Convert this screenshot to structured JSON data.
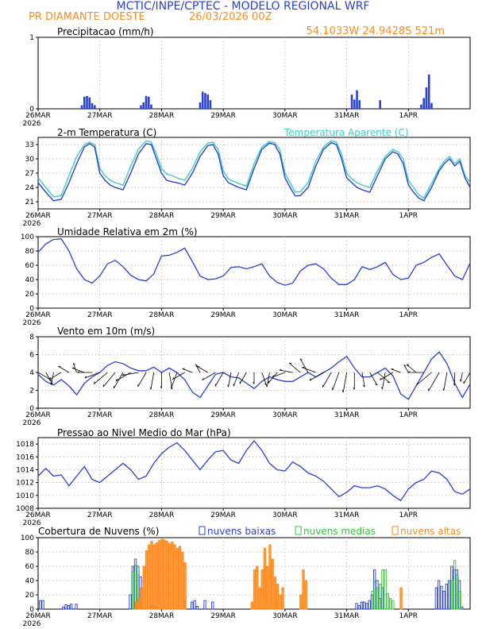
{
  "header": {
    "title": "MCTIC/INPE/CPTEC - MODELO REGIONAL WRF",
    "location": "PR DIAMANTE DOESTE",
    "run": "26/03/2026 00Z",
    "coords": "54.1033W  24.9428S  521m"
  },
  "colors": {
    "title": "#2a3fd6",
    "header_orange": "#ff8a1c",
    "blue": "#2a3fd6",
    "cyan": "#3ccfc0",
    "green": "#2fc72f",
    "orange": "#ff8a1c",
    "black": "#000000"
  },
  "x_axis": {
    "labels": [
      "26MAR",
      "27MAR",
      "28MAR",
      "29MAR",
      "30MAR",
      "31MAR",
      "1APR"
    ],
    "year": "2026",
    "hours_total": 168
  },
  "chart_data": [
    {
      "id": "precip",
      "type": "bar",
      "title": "Precipitacao (mm/h)",
      "ylim": [
        0,
        1
      ],
      "yticks": [
        "0",
        "1"
      ],
      "x_hours": [
        17,
        18,
        19,
        20,
        21,
        22,
        40,
        41,
        42,
        43,
        44,
        63,
        64,
        65,
        66,
        67,
        122,
        123,
        124,
        125,
        133,
        149,
        150,
        151,
        152,
        153
      ],
      "values": [
        0.05,
        0.17,
        0.18,
        0.16,
        0.08,
        0.05,
        0.05,
        0.09,
        0.18,
        0.17,
        0.06,
        0.09,
        0.24,
        0.22,
        0.2,
        0.12,
        0.2,
        0.13,
        0.26,
        0.12,
        0.12,
        0.06,
        0.15,
        0.3,
        0.48,
        0.08
      ]
    },
    {
      "id": "temperature",
      "type": "line",
      "title": "2-m Temperatura (C)",
      "legend": "Temperatura Aparente (C)",
      "ylim": [
        19.5,
        34.5
      ],
      "yticks": [
        "21",
        "24",
        "27",
        "30",
        "33"
      ],
      "series": [
        {
          "name": "2-m Temperatura (C)",
          "color": "blue",
          "hours": [
            0,
            3,
            6,
            9,
            12,
            15,
            18,
            20,
            22,
            24,
            26,
            28,
            30,
            33,
            36,
            39,
            42,
            44,
            46,
            48,
            50,
            52,
            54,
            57,
            60,
            63,
            66,
            68,
            70,
            72,
            74,
            76,
            78,
            81,
            84,
            87,
            90,
            92,
            94,
            96,
            98,
            100,
            102,
            105,
            108,
            111,
            114,
            116,
            118,
            120,
            122,
            124,
            126,
            129,
            132,
            135,
            138,
            140,
            142,
            144,
            146,
            148,
            150,
            153,
            156,
            158,
            160,
            162,
            164,
            166,
            168
          ],
          "values": [
            25,
            23,
            21.2,
            21.5,
            25,
            29,
            32.5,
            33.2,
            32.5,
            27,
            25.5,
            24.5,
            24,
            23.5,
            27,
            31,
            33.2,
            33,
            30,
            27,
            25.5,
            25.2,
            25,
            24.5,
            27,
            30.5,
            32.8,
            33,
            31,
            26.5,
            25,
            24.5,
            24,
            23.5,
            28,
            32,
            33.3,
            33,
            31,
            26,
            24,
            22.2,
            22.3,
            24,
            28.5,
            32,
            33.4,
            33,
            30,
            26,
            25,
            24,
            23.5,
            23,
            26.5,
            30,
            31.5,
            31,
            29,
            24.5,
            23,
            21.8,
            21.2,
            24,
            27.5,
            29,
            30,
            28.5,
            29.5,
            26,
            24
          ]
        },
        {
          "name": "Temperatura Aparente (C)",
          "color": "cyan",
          "hours": [
            0,
            3,
            6,
            9,
            12,
            15,
            18,
            20,
            22,
            24,
            26,
            28,
            30,
            33,
            36,
            39,
            42,
            44,
            46,
            48,
            50,
            52,
            54,
            57,
            60,
            63,
            66,
            68,
            70,
            72,
            74,
            76,
            78,
            81,
            84,
            87,
            90,
            92,
            94,
            96,
            98,
            100,
            102,
            105,
            108,
            111,
            114,
            116,
            118,
            120,
            122,
            124,
            126,
            129,
            132,
            135,
            138,
            140,
            142,
            144,
            146,
            148,
            150,
            153,
            156,
            158,
            160,
            162,
            164,
            166,
            168
          ],
          "values": [
            26,
            24,
            22,
            22.3,
            26.5,
            30.5,
            33,
            33.5,
            33,
            28,
            26.5,
            25.5,
            25,
            24.5,
            28.5,
            32,
            33.8,
            33.5,
            31,
            28,
            26.8,
            26.5,
            26,
            25.5,
            28,
            31.5,
            33.3,
            33.5,
            32,
            27.5,
            25.8,
            25.3,
            24.8,
            24.3,
            29,
            32.5,
            33.6,
            33.4,
            32,
            27,
            25,
            23,
            23.1,
            25,
            29.5,
            32.5,
            33.8,
            33.5,
            31,
            27,
            25.8,
            25,
            24.5,
            24,
            27.5,
            30.5,
            32,
            31.5,
            30,
            25.5,
            24,
            22.5,
            21.8,
            24.8,
            28,
            29.5,
            30.5,
            29,
            30,
            26.5,
            25
          ]
        }
      ]
    },
    {
      "id": "humidity",
      "type": "line",
      "title": "Umidade Relativa em 2m (%)",
      "ylim": [
        0,
        100
      ],
      "yticks": [
        "0",
        "20",
        "40",
        "60",
        "80",
        "100"
      ],
      "hours": [
        0,
        3,
        6,
        9,
        12,
        15,
        18,
        21,
        24,
        27,
        30,
        33,
        36,
        39,
        42,
        45,
        48,
        51,
        54,
        57,
        60,
        63,
        66,
        69,
        72,
        75,
        78,
        81,
        84,
        87,
        90,
        93,
        96,
        99,
        102,
        105,
        108,
        111,
        114,
        117,
        120,
        123,
        126,
        129,
        132,
        135,
        138,
        141,
        144,
        147,
        150,
        153,
        156,
        159,
        162,
        165,
        168
      ],
      "values": [
        78,
        90,
        96,
        97,
        80,
        55,
        40,
        35,
        45,
        62,
        67,
        58,
        46,
        40,
        38,
        48,
        73,
        74,
        78,
        84,
        65,
        45,
        40,
        41,
        45,
        57,
        58,
        55,
        58,
        62,
        45,
        36,
        32,
        35,
        52,
        60,
        62,
        55,
        42,
        33,
        33,
        40,
        58,
        54,
        58,
        64,
        47,
        40,
        42,
        60,
        64,
        71,
        76,
        60,
        45,
        40,
        63
      ]
    },
    {
      "id": "wind",
      "type": "line",
      "title": "Vento em 10m (m/s)",
      "ylim": [
        0,
        8
      ],
      "yticks": [
        "0",
        "2",
        "4",
        "6",
        "8"
      ],
      "hours": [
        0,
        3,
        6,
        9,
        12,
        15,
        18,
        21,
        24,
        27,
        30,
        33,
        36,
        39,
        42,
        45,
        48,
        51,
        54,
        57,
        60,
        63,
        66,
        69,
        72,
        75,
        78,
        81,
        84,
        87,
        90,
        93,
        96,
        99,
        102,
        105,
        108,
        111,
        114,
        117,
        120,
        123,
        126,
        129,
        132,
        135,
        138,
        141,
        144,
        147,
        150,
        153,
        156,
        159,
        162,
        165,
        168
      ],
      "values": [
        3.8,
        3,
        2.6,
        3.2,
        2.5,
        1.5,
        2.8,
        3.5,
        4,
        4.8,
        5.2,
        5,
        4.5,
        4.2,
        4.2,
        4.6,
        4,
        4.5,
        4,
        3.2,
        1.8,
        1.2,
        2.5,
        3.8,
        4,
        3.5,
        3.4,
        2.8,
        2.2,
        3,
        3.5,
        3.2,
        3,
        3,
        3.5,
        4,
        3.5,
        4,
        4.5,
        5.2,
        5.8,
        4.5,
        3.5,
        3.5,
        4,
        4.5,
        3.6,
        1.6,
        1,
        2.5,
        4,
        5.5,
        6.3,
        5,
        2.8,
        1.2,
        2.7
      ],
      "barb_dirs": [
        30,
        60,
        100,
        150,
        210,
        250,
        200,
        180,
        160,
        140,
        130,
        120,
        150,
        170,
        120,
        100,
        90,
        80,
        110,
        150,
        200,
        240,
        210,
        150,
        120,
        100,
        110,
        120,
        90,
        70,
        100,
        130,
        160,
        190,
        220,
        240,
        200,
        150,
        120,
        110,
        100,
        90,
        80,
        60,
        40,
        100,
        150,
        200,
        240,
        220,
        180,
        140,
        120,
        100,
        90,
        100,
        120
      ]
    },
    {
      "id": "pressure",
      "type": "line",
      "title": "Pressao ao Nivel Medio do Mar (hPa)",
      "ylim": [
        1008,
        1019
      ],
      "yticks": [
        "1008",
        "1010",
        "1012",
        "1014",
        "1016",
        "1018"
      ],
      "hours": [
        0,
        3,
        6,
        9,
        12,
        15,
        18,
        21,
        24,
        27,
        30,
        33,
        36,
        39,
        42,
        45,
        48,
        51,
        54,
        57,
        60,
        63,
        66,
        69,
        72,
        75,
        78,
        81,
        84,
        87,
        90,
        93,
        96,
        99,
        102,
        105,
        108,
        111,
        114,
        117,
        120,
        123,
        126,
        129,
        132,
        135,
        138,
        141,
        144,
        147,
        150,
        153,
        156,
        159,
        162,
        165,
        168
      ],
      "values": [
        1013,
        1014.2,
        1013,
        1013.2,
        1011.5,
        1013,
        1014.5,
        1012.5,
        1012,
        1013,
        1014,
        1015,
        1014,
        1012.5,
        1013,
        1015,
        1016.5,
        1017.5,
        1018.2,
        1017,
        1015.5,
        1014,
        1015.5,
        1016.8,
        1017,
        1015.5,
        1015,
        1017,
        1018.5,
        1017,
        1015,
        1014,
        1013.8,
        1015.2,
        1014.5,
        1013.5,
        1013,
        1012.2,
        1011,
        1009.8,
        1010.5,
        1011.5,
        1011.2,
        1011.2,
        1011.5,
        1011,
        1010,
        1009.2,
        1011,
        1012,
        1012.5,
        1013.8,
        1013.5,
        1012.5,
        1010.6,
        1010.2,
        1011
      ]
    },
    {
      "id": "clouds",
      "type": "bar",
      "title": "Cobertura de Nuvens (%)",
      "ylim": [
        0,
        100
      ],
      "yticks": [
        "0",
        "20",
        "40",
        "60",
        "80",
        "100"
      ],
      "series": [
        {
          "name": "nuvens baixas",
          "color": "blue",
          "x_hours": [
            1,
            2,
            10,
            11,
            12,
            13,
            15,
            36,
            37,
            38,
            39,
            40,
            44,
            45,
            46,
            57,
            60,
            61,
            62,
            65,
            68,
            124,
            125,
            126,
            127,
            128,
            129,
            130,
            131,
            132,
            133,
            134,
            155,
            156,
            157,
            158,
            159,
            160,
            161,
            162,
            163,
            164,
            165
          ],
          "values": [
            12,
            12,
            3,
            6,
            5,
            7,
            7,
            20,
            60,
            70,
            60,
            45,
            5,
            5,
            3,
            12,
            10,
            12,
            4,
            12,
            10,
            8,
            5,
            10,
            10,
            8,
            12,
            20,
            55,
            40,
            15,
            30,
            30,
            40,
            32,
            25,
            35,
            40,
            60,
            55,
            55,
            40,
            3
          ]
        },
        {
          "name": "nuvens medias",
          "color": "green",
          "x_hours": [
            37,
            38,
            39,
            130,
            131,
            132,
            133,
            134,
            135,
            136,
            137,
            138,
            161,
            162,
            163,
            164
          ],
          "values": [
            52,
            62,
            48,
            25,
            38,
            30,
            35,
            55,
            55,
            22,
            15,
            12,
            40,
            68,
            48,
            25
          ]
        },
        {
          "name": "nuvens altas",
          "color": "orange",
          "x_hours": [
            38,
            39,
            40,
            41,
            42,
            43,
            44,
            45,
            46,
            47,
            48,
            49,
            50,
            51,
            52,
            53,
            54,
            55,
            56,
            57,
            83,
            84,
            85,
            86,
            87,
            88,
            89,
            90,
            91,
            92,
            93,
            94,
            95,
            102,
            103,
            104,
            141
          ],
          "values": [
            10,
            15,
            30,
            60,
            82,
            90,
            95,
            90,
            93,
            96,
            98,
            97,
            95,
            92,
            94,
            90,
            85,
            88,
            80,
            65,
            10,
            55,
            60,
            30,
            55,
            85,
            60,
            90,
            70,
            45,
            35,
            20,
            30,
            20,
            55,
            40,
            30
          ]
        }
      ]
    }
  ]
}
